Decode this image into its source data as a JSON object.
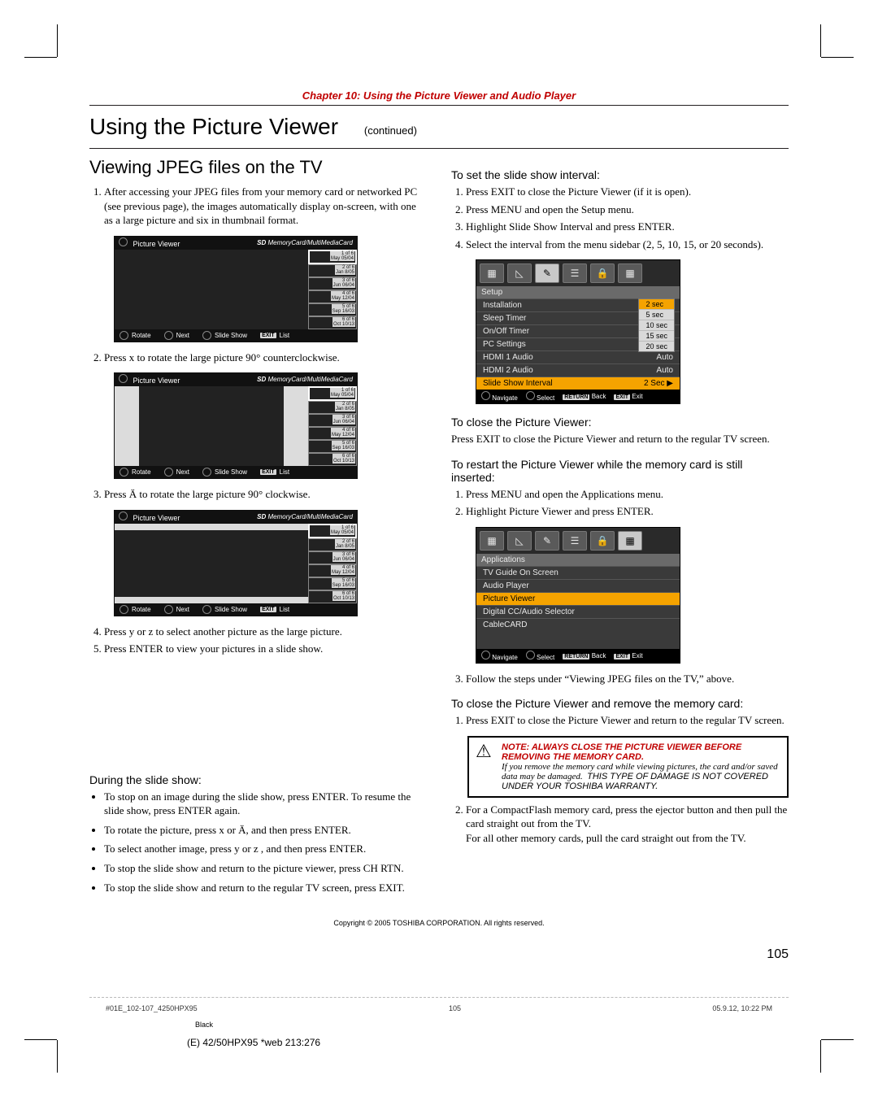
{
  "chapter_title": "Chapter 10: Using the Picture Viewer and Audio Player",
  "h1": "Using the Picture Viewer",
  "h1_cont": "(continued)",
  "left": {
    "h2": "Viewing JPEG files on the TV",
    "step1": "After accessing your JPEG files from your memory card or networked PC (see previous page), the images automatically display on-screen, with one as a large picture and six in thumbnail format.",
    "step2": "Press x to rotate the large picture 90° counterclockwise.",
    "step3": "Press Ä to rotate the large picture 90° clockwise.",
    "step4": "Press y or z to select another picture as the large picture.",
    "step5": "Press ENTER to view your pictures in a slide show.",
    "during_h": "During the slide show:",
    "b1": "To stop on an image during the slide show, press ENTER. To resume the slide show, press ENTER again.",
    "b2": "To rotate the picture, press x or Ä, and then press ENTER.",
    "b3": "To select another image, press y or z , and then press ENTER.",
    "b4": "To stop the slide show and return to the picture viewer, press CH RTN.",
    "b5": "To stop the slide show and return to the regular TV screen, press EXIT."
  },
  "right": {
    "h_interval": "To set the slide show interval:",
    "i1": "Press EXIT to close the Picture Viewer (if it is open).",
    "i2": "Press MENU and open the Setup menu.",
    "i3": "Highlight Slide Show Interval and press ENTER.",
    "i4": "Select the interval from the menu sidebar (2, 5, 10, 15, or 20 seconds).",
    "h_close": "To close the Picture Viewer:",
    "close_p": "Press EXIT to close the Picture Viewer and return to the regular TV screen.",
    "h_restart": "To restart the Picture Viewer while the memory card is still inserted:",
    "r1": "Press MENU and open the Applications menu.",
    "r2": "Highlight Picture Viewer and press ENTER.",
    "r3": "Follow the steps under “Viewing JPEG files on the TV,” above.",
    "h_remove": "To close the Picture Viewer and remove the memory card:",
    "rm1": "Press EXIT to close the Picture Viewer and return to the regular TV screen.",
    "rm2a": "For a CompactFlash memory card, press the ejector button and then pull the card straight out from the TV.",
    "rm2b": "For all other memory cards, pull the card straight out from the TV.",
    "note_hd": "NOTE: ALWAYS CLOSE THE PICTURE VIEWER BEFORE REMOVING THE MEMORY CARD.",
    "note_it": "If you remove the memory card while viewing pictures, the card and/or saved data may be damaged.",
    "note_em": "THIS TYPE OF DAMAGE IS NOT COVERED UNDER YOUR TOSHIBA WARRANTY."
  },
  "pv": {
    "title": "Picture Viewer",
    "mem_prefix": "SD",
    "mem": "MemoryCard/MultiMediaCard",
    "footer": {
      "rotate": "Rotate",
      "next": "Next",
      "slide": "Slide Show",
      "exit": "EXIT",
      "list": "List"
    },
    "thumbs": [
      {
        "idx": "1 of 6",
        "date": "May 05/04"
      },
      {
        "idx": "2 of 6",
        "date": "Jan 8/05"
      },
      {
        "idx": "3 of 6",
        "date": "Jun 06/04"
      },
      {
        "idx": "4 of 6",
        "date": "May 12/04"
      },
      {
        "idx": "5 of 6",
        "date": "Sep 16/03"
      },
      {
        "idx": "6 of 6",
        "date": "Oct 10/13"
      }
    ]
  },
  "setup": {
    "title": "Setup",
    "rows": [
      {
        "label": "Installation",
        "val": ""
      },
      {
        "label": "Sleep Timer",
        "val": ""
      },
      {
        "label": "On/Off Timer",
        "val": ""
      },
      {
        "label": "PC Settings",
        "val": ""
      },
      {
        "label": "HDMI 1 Audio",
        "val": "Auto"
      },
      {
        "label": "HDMI 2 Audio",
        "val": "Auto"
      },
      {
        "label": "Slide Show Interval",
        "val": "2 Sec ▶"
      }
    ],
    "popup": [
      "2 sec",
      "5 sec",
      "10 sec",
      "15 sec",
      "20 sec"
    ],
    "foot": {
      "nav": "Navigate",
      "sel": "Select",
      "back": "Back",
      "exit": "Exit",
      "back_tag": "RETURN",
      "exit_tag": "EXIT"
    }
  },
  "apps": {
    "title": "Applications",
    "rows": [
      "TV Guide On Screen",
      "Audio Player",
      "Picture Viewer",
      "Digital CC/Audio Selector",
      "CableCARD"
    ],
    "hi_index": 2
  },
  "tab_icons": [
    "▦",
    "◺",
    "✎",
    "☰",
    "🔒",
    "▦"
  ],
  "copyright": "Copyright © 2005 TOSHIBA CORPORATION. All rights reserved.",
  "pageno": "105",
  "sig_left": "#01E_102-107_4250HPX95",
  "sig_mid": "105",
  "sig_right": "05.9.12, 10:22 PM",
  "black": "Black",
  "webref": "(E) 42/50HPX95 *web 213:276"
}
